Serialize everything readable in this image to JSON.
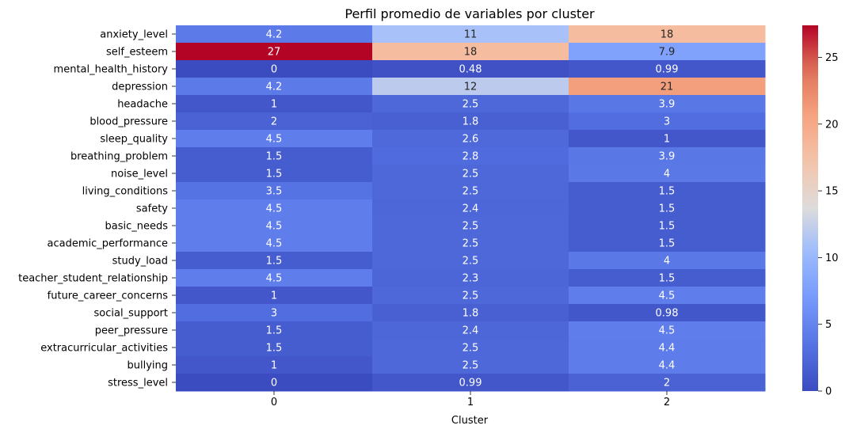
{
  "chart_data": {
    "type": "heatmap",
    "title": "Perfil promedio de variables por cluster",
    "xlabel": "Cluster",
    "ylabel": "",
    "colormap": "coolwarm",
    "color_range": [
      0,
      27.4
    ],
    "colorbar_ticks": [
      "0",
      "5",
      "10",
      "15",
      "20",
      "25"
    ],
    "columns": [
      "0",
      "1",
      "2"
    ],
    "rows": [
      {
        "label": "anxiety_level",
        "values": [
          4.2,
          11,
          18
        ],
        "texts": [
          "4.2",
          "11",
          "18"
        ]
      },
      {
        "label": "self_esteem",
        "values": [
          27.4,
          18,
          7.9
        ],
        "texts": [
          "27",
          "18",
          "7.9"
        ]
      },
      {
        "label": "mental_health_history",
        "values": [
          0,
          0.48,
          0.99
        ],
        "texts": [
          "0",
          "0.48",
          "0.99"
        ]
      },
      {
        "label": "depression",
        "values": [
          4.2,
          12,
          21
        ],
        "texts": [
          "4.2",
          "12",
          "21"
        ]
      },
      {
        "label": "headache",
        "values": [
          1,
          2.5,
          3.9
        ],
        "texts": [
          "1",
          "2.5",
          "3.9"
        ]
      },
      {
        "label": "blood_pressure",
        "values": [
          2,
          1.8,
          3
        ],
        "texts": [
          "2",
          "1.8",
          "3"
        ]
      },
      {
        "label": "sleep_quality",
        "values": [
          4.5,
          2.6,
          1
        ],
        "texts": [
          "4.5",
          "2.6",
          "1"
        ]
      },
      {
        "label": "breathing_problem",
        "values": [
          1.5,
          2.8,
          3.9
        ],
        "texts": [
          "1.5",
          "2.8",
          "3.9"
        ]
      },
      {
        "label": "noise_level",
        "values": [
          1.5,
          2.5,
          4
        ],
        "texts": [
          "1.5",
          "2.5",
          "4"
        ]
      },
      {
        "label": "living_conditions",
        "values": [
          3.5,
          2.5,
          1.5
        ],
        "texts": [
          "3.5",
          "2.5",
          "1.5"
        ]
      },
      {
        "label": "safety",
        "values": [
          4.5,
          2.4,
          1.5
        ],
        "texts": [
          "4.5",
          "2.4",
          "1.5"
        ]
      },
      {
        "label": "basic_needs",
        "values": [
          4.5,
          2.5,
          1.5
        ],
        "texts": [
          "4.5",
          "2.5",
          "1.5"
        ]
      },
      {
        "label": "academic_performance",
        "values": [
          4.5,
          2.5,
          1.5
        ],
        "texts": [
          "4.5",
          "2.5",
          "1.5"
        ]
      },
      {
        "label": "study_load",
        "values": [
          1.5,
          2.5,
          4
        ],
        "texts": [
          "1.5",
          "2.5",
          "4"
        ]
      },
      {
        "label": "teacher_student_relationship",
        "values": [
          4.5,
          2.3,
          1.5
        ],
        "texts": [
          "4.5",
          "2.3",
          "1.5"
        ]
      },
      {
        "label": "future_career_concerns",
        "values": [
          1,
          2.5,
          4.5
        ],
        "texts": [
          "1",
          "2.5",
          "4.5"
        ]
      },
      {
        "label": "social_support",
        "values": [
          3,
          1.8,
          0.98
        ],
        "texts": [
          "3",
          "1.8",
          "0.98"
        ]
      },
      {
        "label": "peer_pressure",
        "values": [
          1.5,
          2.4,
          4.5
        ],
        "texts": [
          "1.5",
          "2.4",
          "4.5"
        ]
      },
      {
        "label": "extracurricular_activities",
        "values": [
          1.5,
          2.5,
          4.4
        ],
        "texts": [
          "1.5",
          "2.5",
          "4.4"
        ]
      },
      {
        "label": "bullying",
        "values": [
          1,
          2.5,
          4.4
        ],
        "texts": [
          "1",
          "2.5",
          "4.4"
        ]
      },
      {
        "label": "stress_level",
        "values": [
          0,
          0.99,
          2
        ],
        "texts": [
          "0",
          "0.99",
          "2"
        ]
      }
    ]
  }
}
